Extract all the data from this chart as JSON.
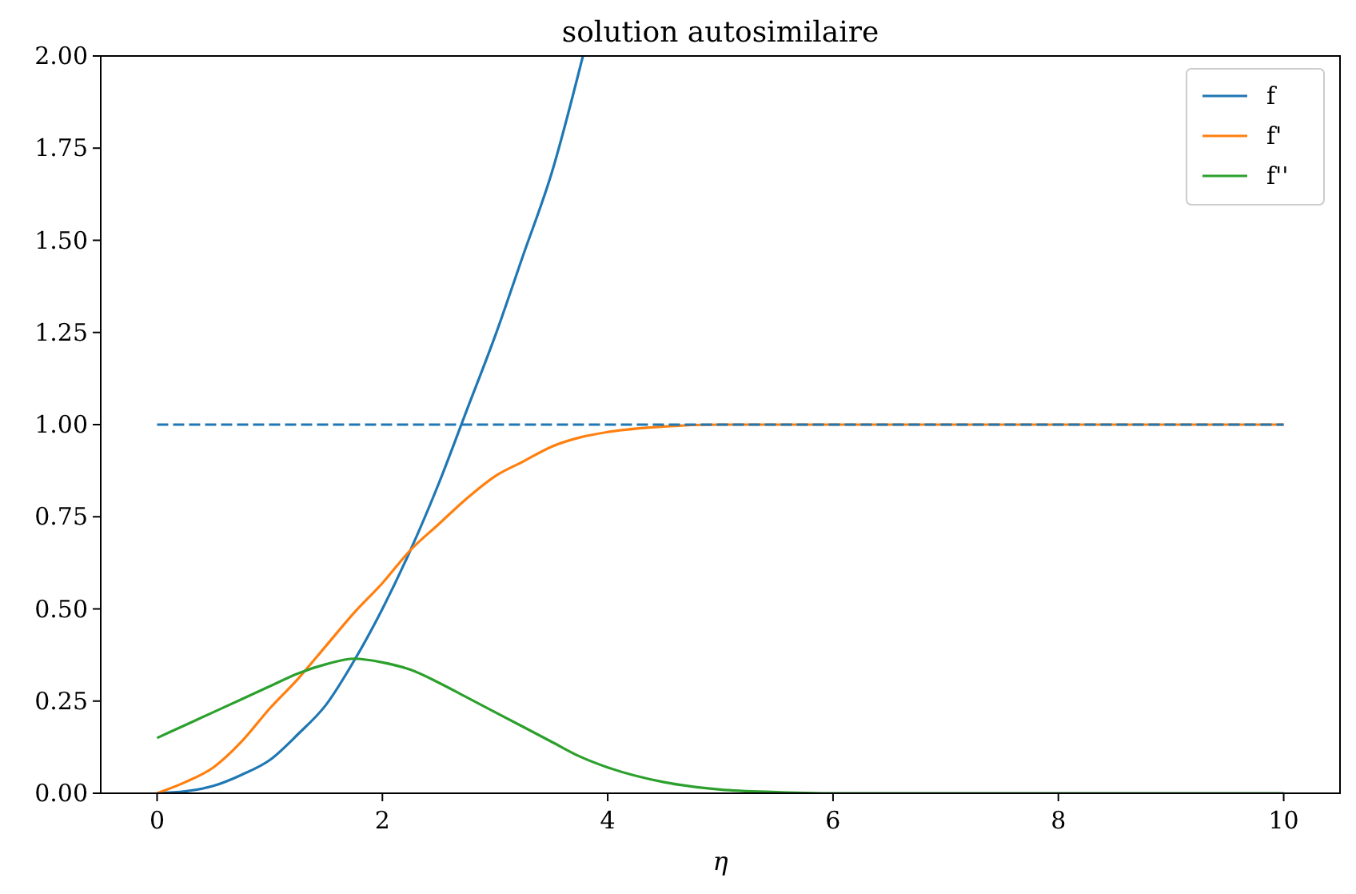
{
  "chart_data": {
    "type": "line",
    "title": "solution autosimilaire",
    "xlabel": "η",
    "xlim": [
      -0.5,
      10.5
    ],
    "xticks": [
      0,
      2,
      4,
      6,
      8,
      10
    ],
    "ylim": [
      0,
      2
    ],
    "yticks": [
      {
        "value": 0,
        "label": "0.00"
      },
      {
        "value": 0.25,
        "label": "0.25"
      },
      {
        "value": 0.5,
        "label": "0.50"
      },
      {
        "value": 0.75,
        "label": "0.75"
      },
      {
        "value": 1,
        "label": "1.00"
      },
      {
        "value": 1.25,
        "label": "1.25"
      },
      {
        "value": 1.5,
        "label": "1.50"
      },
      {
        "value": 1.75,
        "label": "1.75"
      },
      {
        "value": 2,
        "label": "2.00"
      }
    ],
    "legend": "top right",
    "grid": false,
    "series": [
      {
        "name": "f",
        "color": "#1f77b4",
        "x": [
          0,
          0.25,
          0.5,
          0.75,
          1,
          1.25,
          1.5,
          1.75,
          2,
          2.25,
          2.5,
          2.75,
          3,
          3.25,
          3.5,
          3.78
        ],
        "values": [
          0,
          0.005,
          0.02,
          0.05,
          0.09,
          0.16,
          0.24,
          0.36,
          0.5,
          0.66,
          0.84,
          1.04,
          1.24,
          1.46,
          1.68,
          2.0
        ]
      },
      {
        "name": "f'",
        "color": "#ff7f0e",
        "x": [
          0,
          0.25,
          0.5,
          0.75,
          1,
          1.25,
          1.5,
          1.75,
          2,
          2.25,
          2.5,
          2.75,
          3,
          3.25,
          3.5,
          3.75,
          4,
          4.5,
          5,
          6,
          7,
          8,
          9,
          10
        ],
        "values": [
          0,
          0.03,
          0.07,
          0.14,
          0.23,
          0.31,
          0.4,
          0.49,
          0.57,
          0.66,
          0.73,
          0.8,
          0.86,
          0.9,
          0.94,
          0.965,
          0.98,
          0.995,
          1,
          1,
          1,
          1,
          1,
          1
        ]
      },
      {
        "name": "f''",
        "color": "#2ca02c",
        "x": [
          0,
          0.25,
          0.5,
          0.75,
          1,
          1.25,
          1.5,
          1.75,
          2,
          2.25,
          2.5,
          2.75,
          3,
          3.25,
          3.5,
          3.75,
          4,
          4.5,
          5,
          5.5,
          6,
          7,
          8,
          9,
          10
        ],
        "values": [
          0.15,
          0.185,
          0.22,
          0.255,
          0.29,
          0.325,
          0.35,
          0.365,
          0.355,
          0.335,
          0.3,
          0.26,
          0.22,
          0.18,
          0.14,
          0.1,
          0.07,
          0.03,
          0.01,
          0.003,
          0,
          0,
          0,
          0,
          0
        ]
      },
      {
        "color": "#1f77b4",
        "line_style": "dashed",
        "x": [
          0,
          10
        ],
        "values": [
          1,
          1
        ]
      }
    ]
  }
}
